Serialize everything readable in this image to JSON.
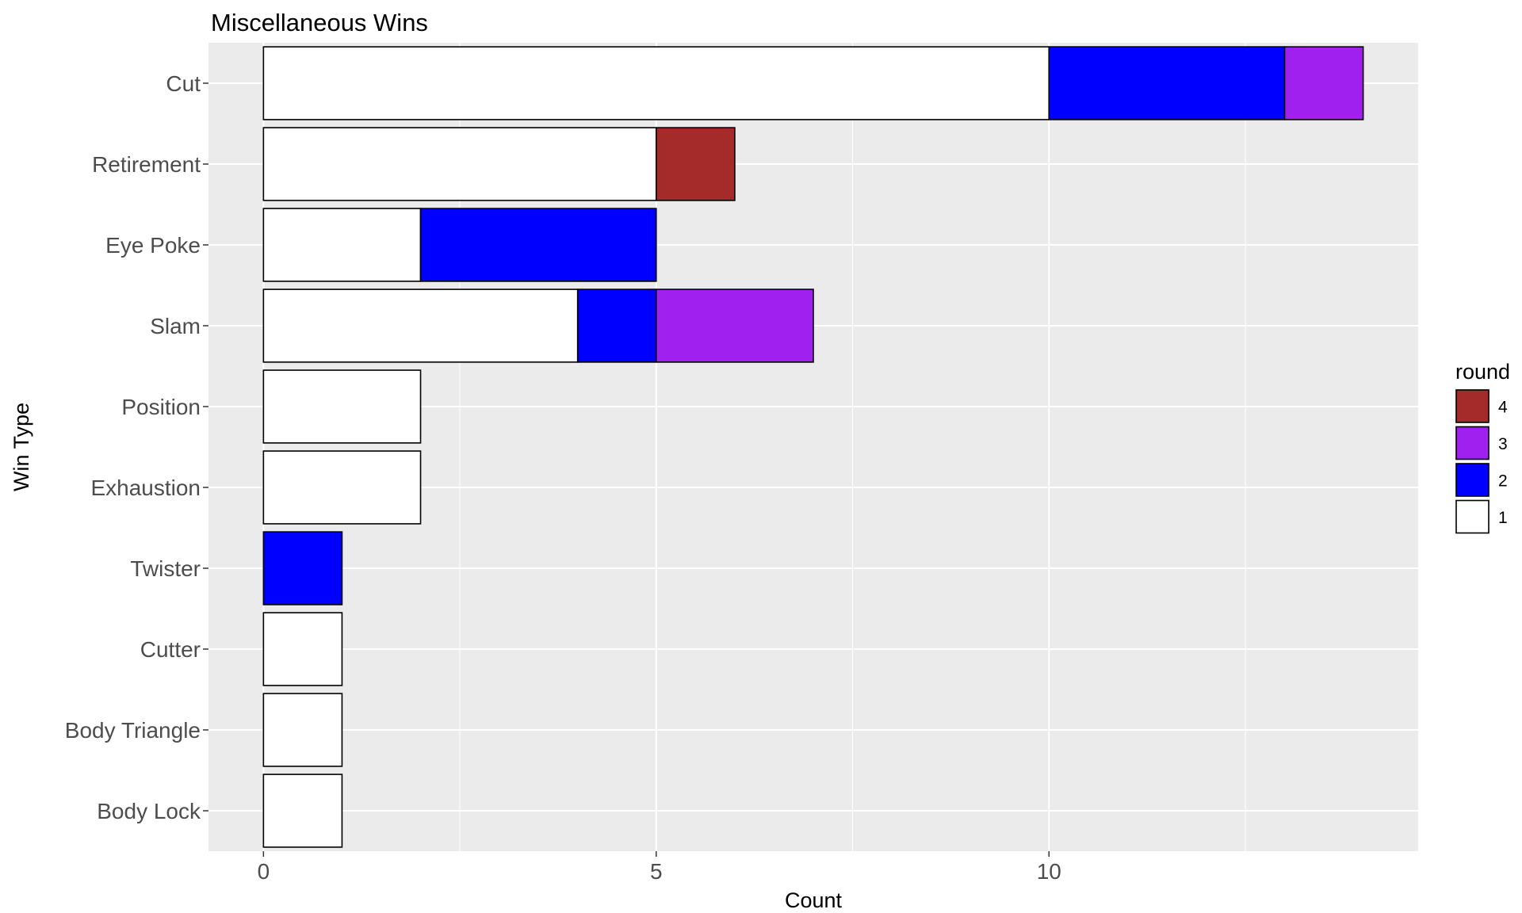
{
  "chart_data": {
    "type": "bar",
    "orientation": "horizontal",
    "stacked": true,
    "title": "Miscellaneous Wins",
    "xlabel": "Count",
    "ylabel": "Win Type",
    "xlim": [
      -0.7,
      14.7
    ],
    "x_ticks": [
      0,
      5,
      10
    ],
    "categories": [
      "Cut",
      "Retirement",
      "Eye Poke",
      "Slam",
      "Position",
      "Exhaustion",
      "Twister",
      "Cutter",
      "Body Triangle",
      "Body Lock"
    ],
    "series": [
      {
        "name": "1",
        "color": "#ffffff",
        "values": [
          10,
          5,
          2,
          4,
          2,
          2,
          0,
          1,
          1,
          1
        ]
      },
      {
        "name": "2",
        "color": "#0000ff",
        "values": [
          3,
          0,
          3,
          1,
          0,
          0,
          1,
          0,
          0,
          0
        ]
      },
      {
        "name": "3",
        "color": "#a020f0",
        "values": [
          1,
          0,
          0,
          2,
          0,
          0,
          0,
          0,
          0,
          0
        ]
      },
      {
        "name": "4",
        "color": "#a52a2a",
        "values": [
          0,
          1,
          0,
          0,
          0,
          0,
          0,
          0,
          0,
          0
        ]
      }
    ],
    "legend": {
      "title": "round",
      "position": "right",
      "order": [
        "4",
        "3",
        "2",
        "1"
      ]
    },
    "grid": true,
    "panel_background": "#ebebeb",
    "grid_color": "#ffffff",
    "bar_outline": "#000000"
  }
}
